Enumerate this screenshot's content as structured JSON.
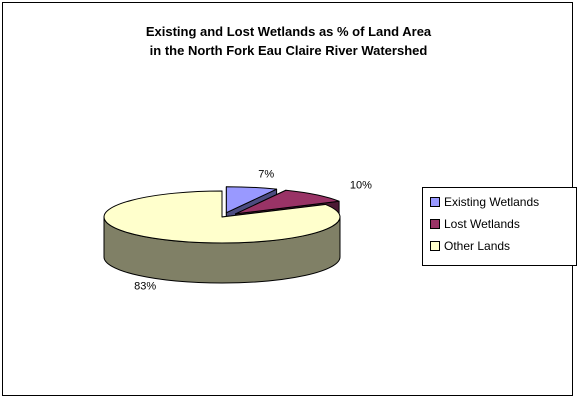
{
  "chart_data": {
    "type": "pie",
    "title_lines": [
      "Existing and Lost Wetlands as % of Land Area",
      "in the North Fork Eau Claire River Watershed"
    ],
    "three_d": true,
    "legend_position": "right",
    "slices": [
      {
        "name": "Existing Wetlands",
        "value": 7,
        "label": "7%",
        "color": "#9999ff",
        "side_color": "#4c4c80"
      },
      {
        "name": "Lost Wetlands",
        "value": 10,
        "label": "10%",
        "color": "#993366",
        "side_color": "#4c1933"
      },
      {
        "name": "Other Lands",
        "value": 83,
        "label": "83%",
        "color": "#ffffcc",
        "side_color": "#808066"
      }
    ]
  }
}
